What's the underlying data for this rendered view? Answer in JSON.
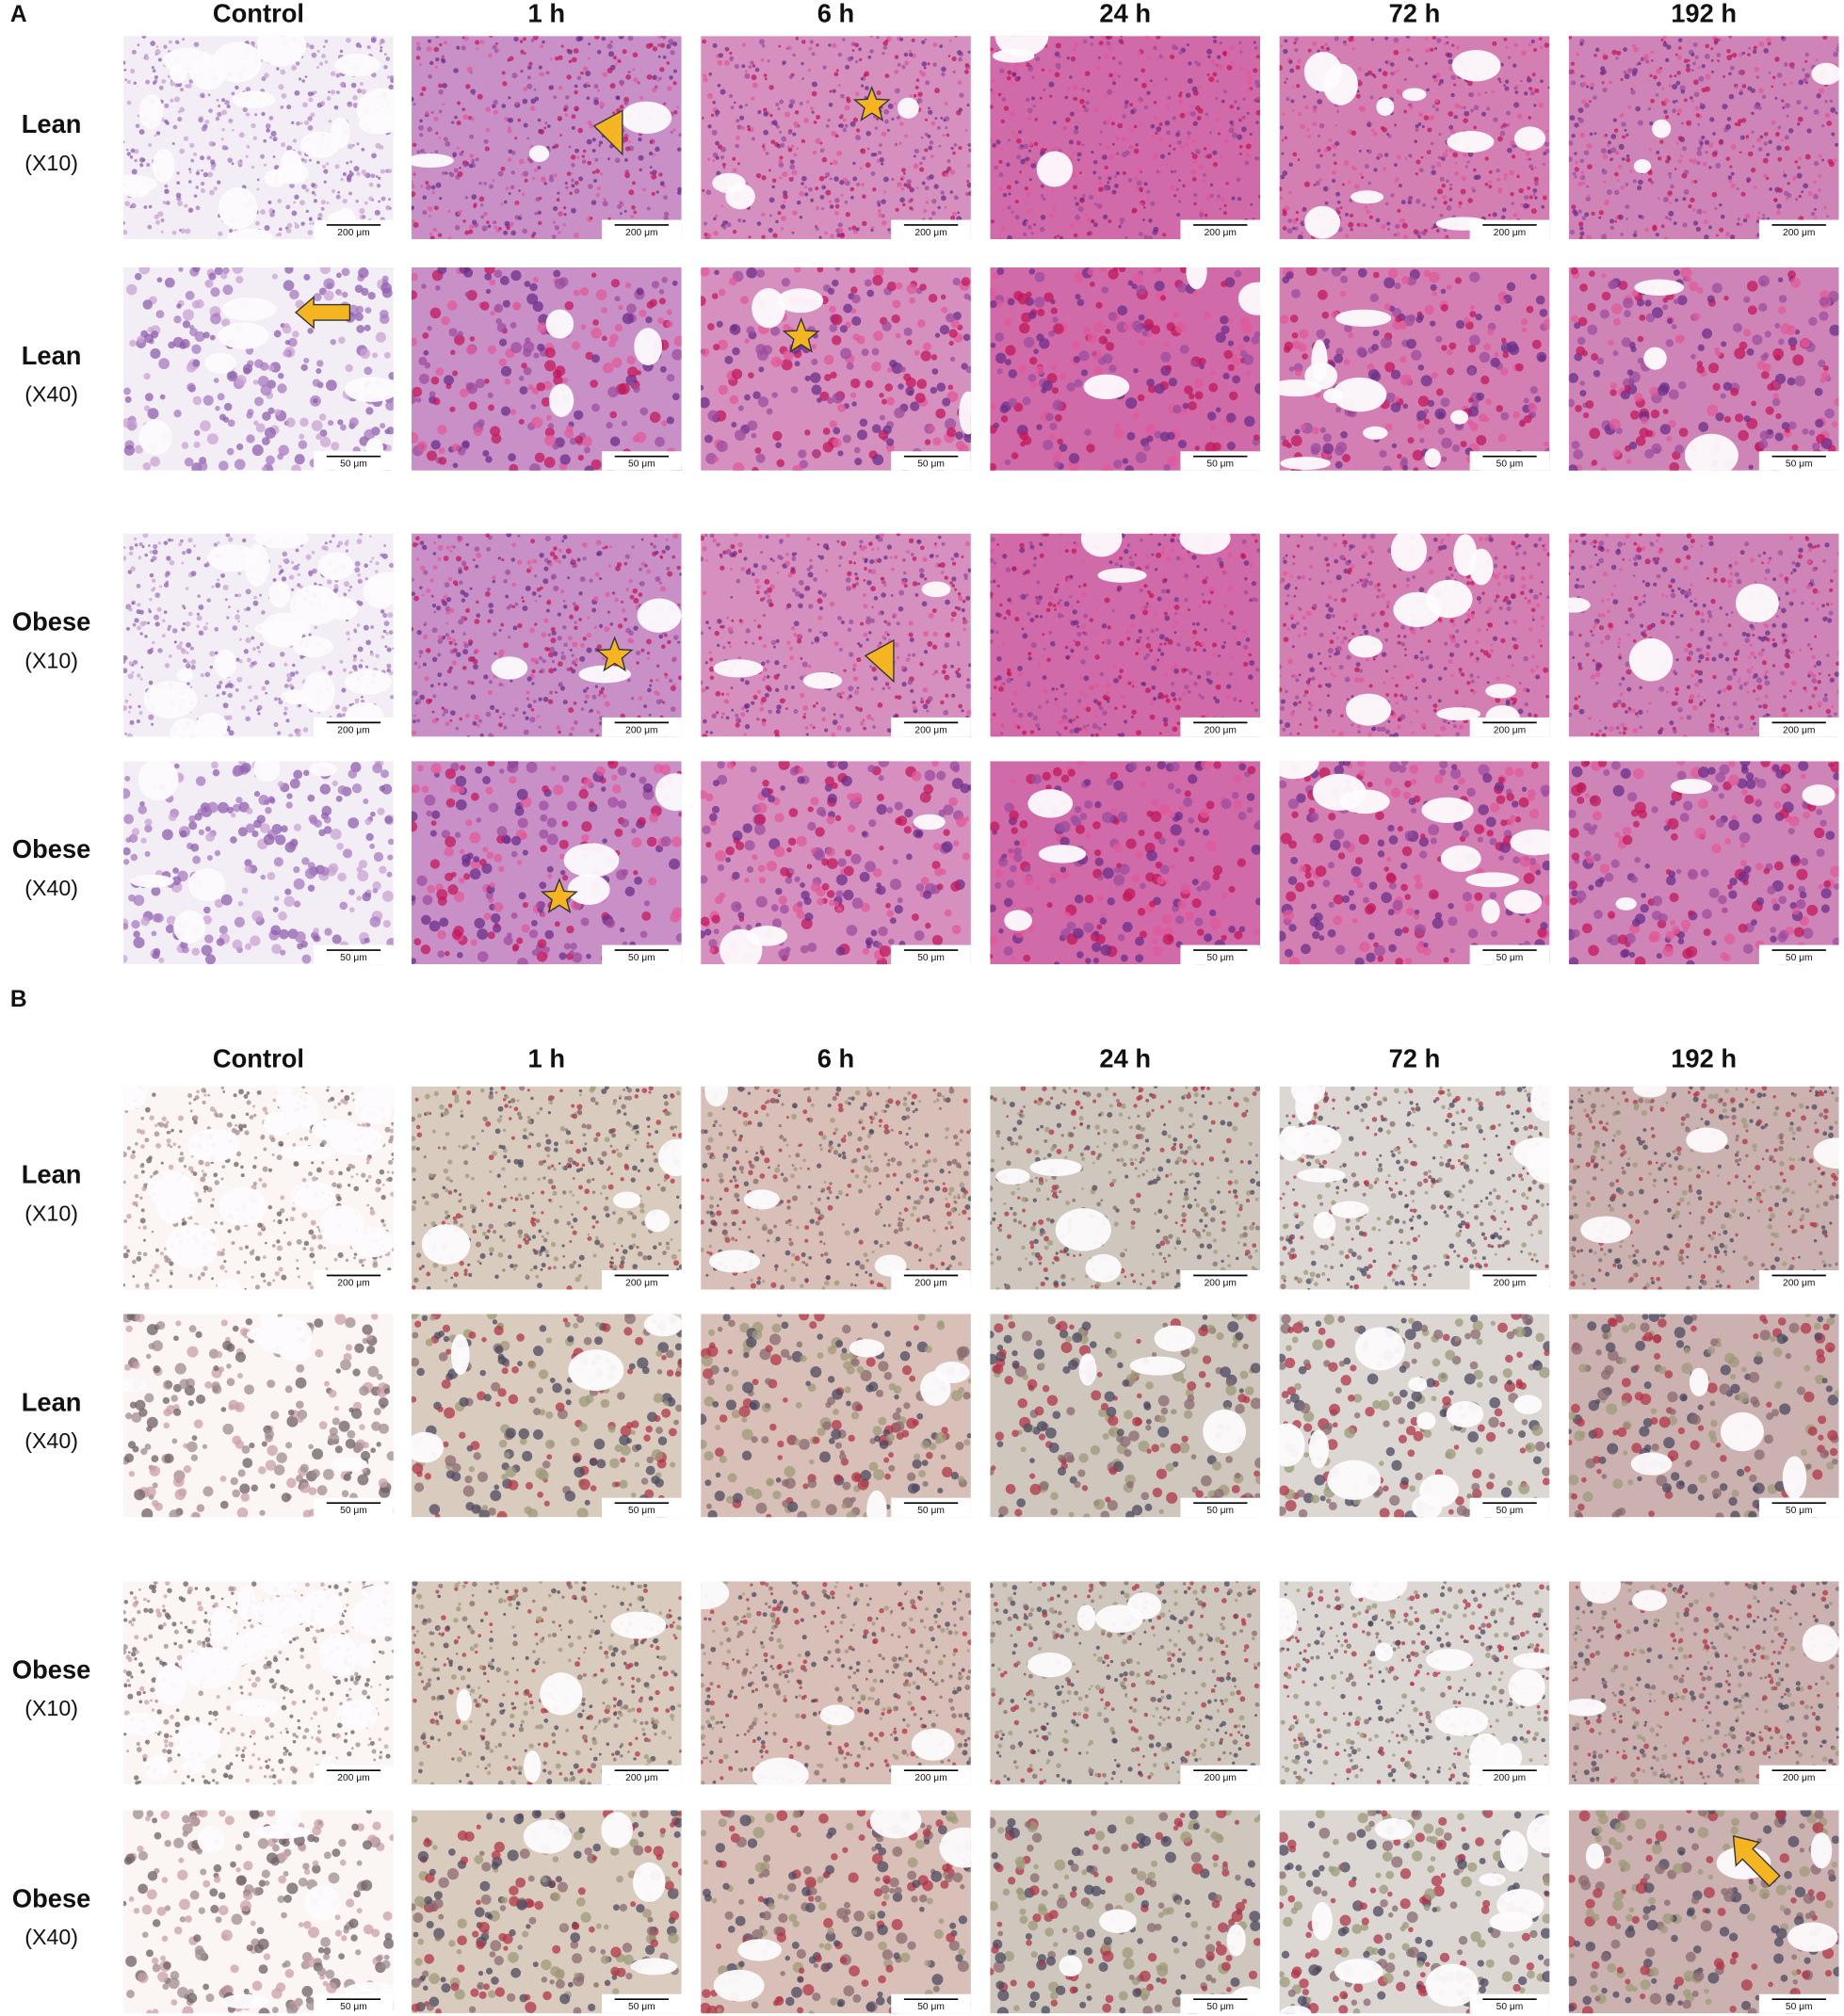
{
  "panels": [
    {
      "label": "A",
      "columns": [
        "Control",
        "1 h",
        "6 h",
        "24 h",
        "72 h",
        "192 h"
      ],
      "rows": [
        {
          "group": "Lean",
          "magnification": "(X10)",
          "scale_bar": "200 μm"
        },
        {
          "group": "Lean",
          "magnification": "(X40)",
          "scale_bar": "50 μm"
        },
        {
          "group": "Obese",
          "magnification": "(X10)",
          "scale_bar": "200 μm"
        },
        {
          "group": "Obese",
          "magnification": "(X40)",
          "scale_bar": "50 μm"
        }
      ]
    },
    {
      "label": "B",
      "columns": [
        "Control",
        "1 h",
        "6 h",
        "24 h",
        "72 h",
        "192 h"
      ],
      "rows": [
        {
          "group": "Lean",
          "magnification": "(X10)",
          "scale_bar": "200 μm"
        },
        {
          "group": "Lean",
          "magnification": "(X40)",
          "scale_bar": "50 μm"
        },
        {
          "group": "Obese",
          "magnification": "(X10)",
          "scale_bar": "200 μm"
        },
        {
          "group": "Obese",
          "magnification": "(X40)",
          "scale_bar": "50 μm"
        }
      ]
    }
  ]
}
